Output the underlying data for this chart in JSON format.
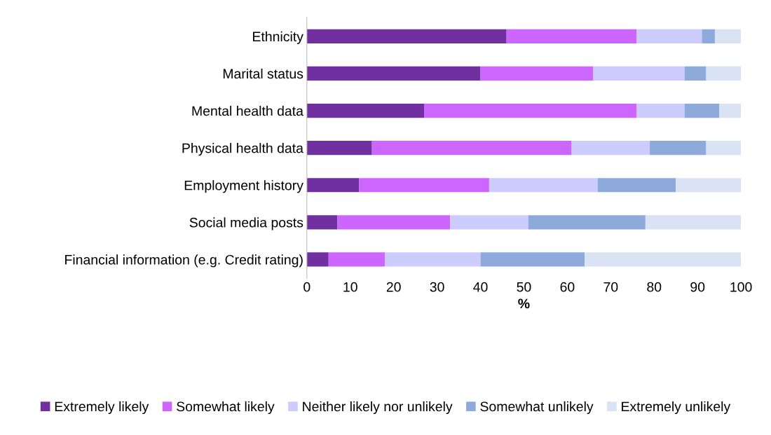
{
  "chart_data": {
    "type": "bar",
    "orientation": "horizontal",
    "stacked": true,
    "xlabel": "%",
    "categories": [
      "Ethnicity",
      "Marital status",
      "Mental health data",
      "Physical health data",
      "Employment history",
      "Social media posts",
      "Financial information (e.g. Credit rating)"
    ],
    "series": [
      {
        "name": "Extremely likely",
        "color": "#7030a0",
        "values": [
          46,
          40,
          27,
          15,
          12,
          7,
          5
        ]
      },
      {
        "name": "Somewhat likely",
        "color": "#cc66ff",
        "values": [
          30,
          26,
          49,
          46,
          30,
          26,
          13
        ]
      },
      {
        "name": "Neither likely nor unlikely",
        "color": "#ccccff",
        "values": [
          15,
          21,
          11,
          18,
          25,
          18,
          22
        ]
      },
      {
        "name": "Somewhat unlikely",
        "color": "#8eaadb",
        "values": [
          3,
          5,
          8,
          13,
          18,
          27,
          24
        ]
      },
      {
        "name": "Extremely unlikely",
        "color": "#dae3f3",
        "values": [
          6,
          8,
          5,
          8,
          15,
          22,
          36
        ]
      }
    ],
    "xlim": [
      0,
      100
    ],
    "xticks": [
      0,
      10,
      20,
      30,
      40,
      50,
      60,
      70,
      80,
      90,
      100
    ],
    "grid": false,
    "legend": "bottom"
  }
}
